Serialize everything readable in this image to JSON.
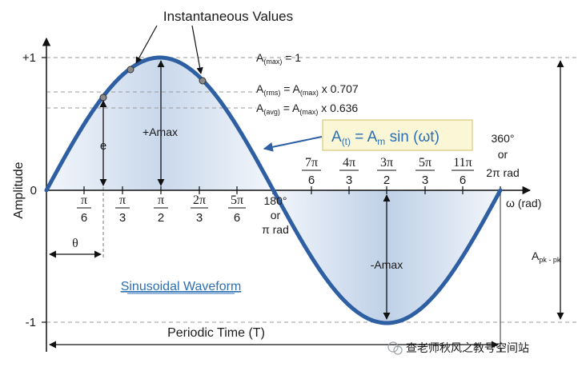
{
  "diagram": {
    "title": "Instantaneous Values",
    "y_axis_label": "Amplitude",
    "y_ticks": {
      "plus_one": "+1",
      "zero": "0",
      "minus_one": "-1"
    },
    "x_axis_label": "ω (rad)",
    "levels": {
      "max": {
        "main": "A",
        "sub": "(max)",
        "rest": " = 1"
      },
      "rms": {
        "main": "A",
        "sub": "(rms)",
        "eq": " = A",
        "sub2": "(max)",
        "rest": " x 0.707"
      },
      "avg": {
        "main": "A",
        "sub": "(avg)",
        "eq": " = A",
        "sub2": "(max)",
        "rest": " x 0.636"
      }
    },
    "formula": {
      "a": "A",
      "sub_t": "(t)",
      "eq": " = A",
      "sub_m": "m",
      "rest": " sin (ωt)"
    },
    "upper_fractions": [
      {
        "num": "π",
        "den": "6"
      },
      {
        "num": "π",
        "den": "3"
      },
      {
        "num": "π",
        "den": "2"
      },
      {
        "num": "2π",
        "den": "3"
      },
      {
        "num": "5π",
        "den": "6"
      }
    ],
    "lower_fractions": [
      {
        "num": "7π",
        "den": "6"
      },
      {
        "num": "4π",
        "den": "3"
      },
      {
        "num": "3π",
        "den": "2"
      },
      {
        "num": "5π",
        "den": "3"
      },
      {
        "num": "11π",
        "den": "6"
      }
    ],
    "label_180": [
      "180°",
      "or",
      "π rad"
    ],
    "label_360": [
      "360°",
      "or",
      "2π rad"
    ],
    "plus_amax": "+Amax",
    "minus_amax": "-Amax",
    "e_label": "e",
    "theta_label": "θ",
    "waveform_title": "Sinusoidal Waveform",
    "period_label": "Periodic Time (T)",
    "apk": {
      "main": "A",
      "sub": "pk - pk"
    },
    "watermark": "查老师秋风之教号空间站",
    "colors": {
      "curve": "#2e5fa3",
      "fill_light": "#eef3fa",
      "fill_dark": "#c6d5ea",
      "formula_bg": "#fbf6d6",
      "formula_border": "#d8c97a",
      "formula_text": "#2d6fb3"
    }
  }
}
